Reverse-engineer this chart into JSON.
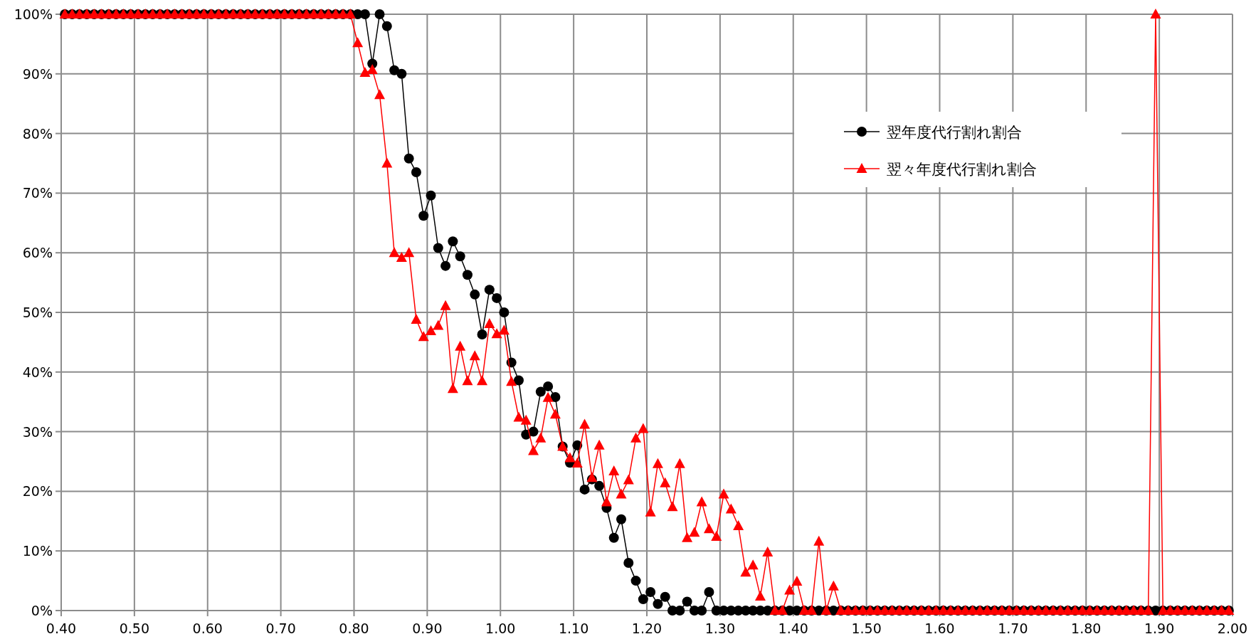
{
  "chart_data": {
    "type": "line",
    "xlim": [
      0.4,
      2.0
    ],
    "xticks": [
      {
        "value": 0.4,
        "label": "0.40"
      },
      {
        "value": 0.5,
        "label": "0.50"
      },
      {
        "value": 0.6,
        "label": "0.60"
      },
      {
        "value": 0.7,
        "label": "0.70"
      },
      {
        "value": 0.8,
        "label": "0.80"
      },
      {
        "value": 0.9,
        "label": "0.90"
      },
      {
        "value": 1.0,
        "label": "1.00"
      },
      {
        "value": 1.1,
        "label": "1.10"
      },
      {
        "value": 1.2,
        "label": "1.20"
      },
      {
        "value": 1.3,
        "label": "1.30"
      },
      {
        "value": 1.4,
        "label": "1.40"
      },
      {
        "value": 1.5,
        "label": "1.50"
      },
      {
        "value": 1.6,
        "label": "1.60"
      },
      {
        "value": 1.7,
        "label": "1.70"
      },
      {
        "value": 1.8,
        "label": "1.80"
      },
      {
        "value": 1.9,
        "label": "1.90"
      },
      {
        "value": 2.0,
        "label": "2.00"
      }
    ],
    "ylim": [
      0,
      100
    ],
    "yticks": [
      {
        "value": 0,
        "label": "0%"
      },
      {
        "value": 10,
        "label": "10%"
      },
      {
        "value": 20,
        "label": "20%"
      },
      {
        "value": 30,
        "label": "30%"
      },
      {
        "value": 40,
        "label": "40%"
      },
      {
        "value": 50,
        "label": "50%"
      },
      {
        "value": 60,
        "label": "60%"
      },
      {
        "value": 70,
        "label": "70%"
      },
      {
        "value": 80,
        "label": "80%"
      },
      {
        "value": 90,
        "label": "90%"
      },
      {
        "value": 100,
        "label": "100%"
      }
    ],
    "x": [
      0.405,
      0.415,
      0.425,
      0.435,
      0.445,
      0.455,
      0.465,
      0.475,
      0.485,
      0.495,
      0.505,
      0.515,
      0.525,
      0.535,
      0.545,
      0.555,
      0.565,
      0.575,
      0.585,
      0.595,
      0.605,
      0.615,
      0.625,
      0.635,
      0.645,
      0.655,
      0.665,
      0.675,
      0.685,
      0.695,
      0.705,
      0.715,
      0.725,
      0.735,
      0.745,
      0.755,
      0.765,
      0.775,
      0.785,
      0.795,
      0.805,
      0.815,
      0.825,
      0.835,
      0.845,
      0.855,
      0.865,
      0.875,
      0.885,
      0.895,
      0.905,
      0.915,
      0.925,
      0.935,
      0.945,
      0.955,
      0.965,
      0.975,
      0.985,
      0.995,
      1.005,
      1.015,
      1.025,
      1.035,
      1.045,
      1.055,
      1.065,
      1.075,
      1.085,
      1.095,
      1.105,
      1.115,
      1.125,
      1.135,
      1.145,
      1.155,
      1.165,
      1.175,
      1.185,
      1.195,
      1.205,
      1.215,
      1.225,
      1.235,
      1.245,
      1.255,
      1.265,
      1.275,
      1.285,
      1.295,
      1.305,
      1.315,
      1.325,
      1.335,
      1.345,
      1.355,
      1.365,
      1.375,
      1.385,
      1.395,
      1.405,
      1.415,
      1.425,
      1.435,
      1.445,
      1.455,
      1.465,
      1.475,
      1.485,
      1.495,
      1.505,
      1.515,
      1.525,
      1.535,
      1.545,
      1.555,
      1.565,
      1.575,
      1.585,
      1.595,
      1.605,
      1.615,
      1.625,
      1.635,
      1.645,
      1.655,
      1.665,
      1.675,
      1.685,
      1.695,
      1.705,
      1.715,
      1.725,
      1.735,
      1.745,
      1.755,
      1.765,
      1.775,
      1.785,
      1.795,
      1.805,
      1.815,
      1.825,
      1.835,
      1.845,
      1.855,
      1.865,
      1.875,
      1.885,
      1.895,
      1.905,
      1.915,
      1.925,
      1.935,
      1.945,
      1.955,
      1.965,
      1.975,
      1.985,
      1.995
    ],
    "series": [
      {
        "name": "翌年度代行割れ割合",
        "color": "#000000",
        "marker": "circle",
        "values": [
          100,
          100,
          100,
          100,
          100,
          100,
          100,
          100,
          100,
          100,
          100,
          100,
          100,
          100,
          100,
          100,
          100,
          100,
          100,
          100,
          100,
          100,
          100,
          100,
          100,
          100,
          100,
          100,
          100,
          100,
          100,
          100,
          100,
          100,
          100,
          100,
          100,
          100,
          100,
          100,
          100,
          100,
          91.7,
          100,
          98,
          90.6,
          90,
          75.8,
          73.5,
          66.2,
          69.6,
          60.8,
          57.8,
          61.9,
          59.4,
          56.3,
          53,
          46.3,
          53.8,
          52.4,
          50,
          41.6,
          38.6,
          29.5,
          30,
          36.7,
          37.6,
          35.8,
          27.5,
          24.8,
          27.7,
          20.3,
          22,
          20.9,
          17.2,
          12.2,
          15.3,
          8,
          5,
          1.9,
          3.1,
          1.1,
          2.3,
          0,
          0,
          1.5,
          0,
          0,
          3.1,
          0,
          0,
          0,
          0,
          0,
          0,
          0,
          0,
          0,
          0,
          0,
          0,
          0,
          0,
          0,
          0,
          0,
          0,
          0,
          0,
          0,
          0,
          0,
          0,
          0,
          0,
          0,
          0,
          0,
          0,
          0,
          0,
          0,
          0,
          0,
          0,
          0,
          0,
          0,
          0,
          0,
          0,
          0,
          0,
          0,
          0,
          0,
          0,
          0,
          0,
          0,
          0,
          0,
          0,
          0,
          0,
          0,
          0,
          0,
          0,
          0,
          0,
          0,
          0,
          0,
          0,
          0,
          0,
          0,
          0,
          0
        ]
      },
      {
        "name": "翌々年度代行割れ割合",
        "color": "#ff0000",
        "marker": "triangle",
        "values": [
          100,
          100,
          100,
          100,
          100,
          100,
          100,
          100,
          100,
          100,
          100,
          100,
          100,
          100,
          100,
          100,
          100,
          100,
          100,
          100,
          100,
          100,
          100,
          100,
          100,
          100,
          100,
          100,
          100,
          100,
          100,
          100,
          100,
          100,
          100,
          100,
          100,
          100,
          100,
          100,
          95.2,
          90.2,
          90.7,
          86.5,
          75,
          60,
          59.2,
          60,
          48.8,
          45.9,
          46.9,
          47.8,
          51.1,
          37.2,
          44.3,
          38.5,
          42.7,
          38.5,
          48.1,
          46.4,
          47,
          38.4,
          32.4,
          31.9,
          26.8,
          28.9,
          35.7,
          32.9,
          27.5,
          25.6,
          24.7,
          31.2,
          22.3,
          27.7,
          18.2,
          23.4,
          19.5,
          21.9,
          28.9,
          30.5,
          16.5,
          24.6,
          21.4,
          17.4,
          24.6,
          12.2,
          13.1,
          18.2,
          13.7,
          12.4,
          19.5,
          17,
          14.2,
          6.4,
          7.6,
          2.4,
          9.8,
          0,
          0,
          3.4,
          4.9,
          0,
          0,
          11.6,
          0,
          4.1,
          0,
          0,
          0,
          0,
          0,
          0,
          0,
          0,
          0,
          0,
          0,
          0,
          0,
          0,
          0,
          0,
          0,
          0,
          0,
          0,
          0,
          0,
          0,
          0,
          0,
          0,
          0,
          0,
          0,
          0,
          0,
          0,
          0,
          0,
          0,
          0,
          0,
          0,
          0,
          0,
          0,
          0,
          0,
          100,
          0,
          0,
          0,
          0,
          0,
          0,
          0,
          0,
          0,
          0
        ]
      }
    ],
    "grid": true,
    "legend": "top right"
  }
}
